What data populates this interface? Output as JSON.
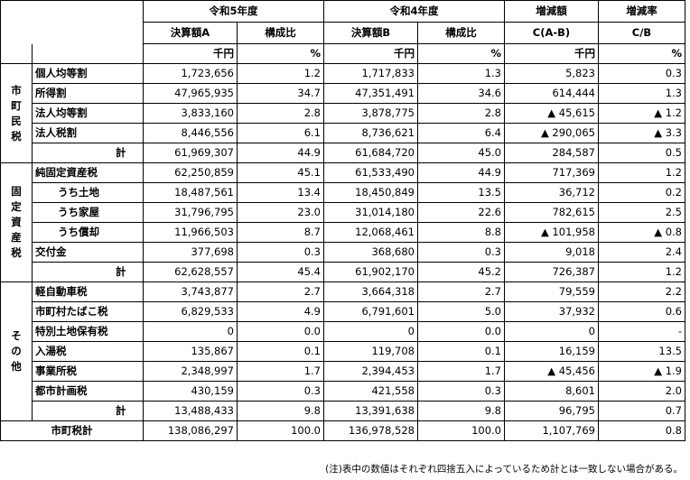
{
  "header": {
    "r5": "令和5年度",
    "r4": "令和4年度",
    "diff": "増減額",
    "rate": "増減率",
    "settlementA": "決算額A",
    "settlementB": "決算額B",
    "ratio": "構成比",
    "diffFormula": "C(A-B)",
    "rateFormula": "C/B",
    "unitYen": "千円",
    "unitPct": "%"
  },
  "groups": [
    {
      "label": [
        "市",
        "町",
        "民",
        "税"
      ],
      "rows": [
        {
          "name": "個人均等割",
          "a": "1,723,656",
          "ar": "1.2",
          "b": "1,717,833",
          "br": "1.3",
          "c": "5,823",
          "cr": "0.3",
          "type": "item"
        },
        {
          "name": "所得割",
          "a": "47,965,935",
          "ar": "34.7",
          "b": "47,351,491",
          "br": "34.6",
          "c": "614,444",
          "cr": "1.3",
          "type": "item"
        },
        {
          "name": "法人均等割",
          "a": "3,833,160",
          "ar": "2.8",
          "b": "3,878,775",
          "br": "2.8",
          "c": "▲ 45,615",
          "cr": "▲ 1.2",
          "type": "item"
        },
        {
          "name": "法人税割",
          "a": "8,446,556",
          "ar": "6.1",
          "b": "8,736,621",
          "br": "6.4",
          "c": "▲ 290,065",
          "cr": "▲ 3.3",
          "type": "item"
        },
        {
          "name": "計",
          "a": "61,969,307",
          "ar": "44.9",
          "b": "61,684,720",
          "br": "45.0",
          "c": "284,587",
          "cr": "0.5",
          "type": "total"
        }
      ]
    },
    {
      "label": [
        "固",
        "定",
        "資",
        "産",
        "税"
      ],
      "rows": [
        {
          "name": "純固定資産税",
          "a": "62,250,859",
          "ar": "45.1",
          "b": "61,533,490",
          "br": "44.9",
          "c": "717,369",
          "cr": "1.2",
          "type": "item"
        },
        {
          "name": "うち土地",
          "a": "18,487,561",
          "ar": "13.4",
          "b": "18,450,849",
          "br": "13.5",
          "c": "36,712",
          "cr": "0.2",
          "type": "sub"
        },
        {
          "name": "うち家屋",
          "a": "31,796,795",
          "ar": "23.0",
          "b": "31,014,180",
          "br": "22.6",
          "c": "782,615",
          "cr": "2.5",
          "type": "sub"
        },
        {
          "name": "うち償却",
          "a": "11,966,503",
          "ar": "8.7",
          "b": "12,068,461",
          "br": "8.8",
          "c": "▲ 101,958",
          "cr": "▲ 0.8",
          "type": "sub"
        },
        {
          "name": "交付金",
          "a": "377,698",
          "ar": "0.3",
          "b": "368,680",
          "br": "0.3",
          "c": "9,018",
          "cr": "2.4",
          "type": "item"
        },
        {
          "name": "計",
          "a": "62,628,557",
          "ar": "45.4",
          "b": "61,902,170",
          "br": "45.2",
          "c": "726,387",
          "cr": "1.2",
          "type": "total"
        }
      ]
    },
    {
      "label": [
        "そ",
        "の",
        "他"
      ],
      "rows": [
        {
          "name": "軽自動車税",
          "a": "3,743,877",
          "ar": "2.7",
          "b": "3,664,318",
          "br": "2.7",
          "c": "79,559",
          "cr": "2.2",
          "type": "item"
        },
        {
          "name": "市町村たばこ税",
          "a": "6,829,533",
          "ar": "4.9",
          "b": "6,791,601",
          "br": "5.0",
          "c": "37,932",
          "cr": "0.6",
          "type": "item"
        },
        {
          "name": "特別土地保有税",
          "a": "0",
          "ar": "0.0",
          "b": "0",
          "br": "0.0",
          "c": "0",
          "cr": "-",
          "type": "item"
        },
        {
          "name": "入湯税",
          "a": "135,867",
          "ar": "0.1",
          "b": "119,708",
          "br": "0.1",
          "c": "16,159",
          "cr": "13.5",
          "type": "item"
        },
        {
          "name": "事業所税",
          "a": "2,348,997",
          "ar": "1.7",
          "b": "2,394,453",
          "br": "1.7",
          "c": "▲ 45,456",
          "cr": "▲ 1.9",
          "type": "item"
        },
        {
          "name": "都市計画税",
          "a": "430,159",
          "ar": "0.3",
          "b": "421,558",
          "br": "0.3",
          "c": "8,601",
          "cr": "2.0",
          "type": "item"
        },
        {
          "name": "計",
          "a": "13,488,433",
          "ar": "9.8",
          "b": "13,391,638",
          "br": "9.8",
          "c": "96,795",
          "cr": "0.7",
          "type": "total"
        }
      ]
    }
  ],
  "grandTotal": {
    "name": "市町税計",
    "a": "138,086,297",
    "ar": "100.0",
    "b": "136,978,528",
    "br": "100.0",
    "c": "1,107,769",
    "cr": "0.8"
  },
  "note": "(注)表中の数値はそれぞれ四捨五入によっているため計とは一致しない場合がある。"
}
